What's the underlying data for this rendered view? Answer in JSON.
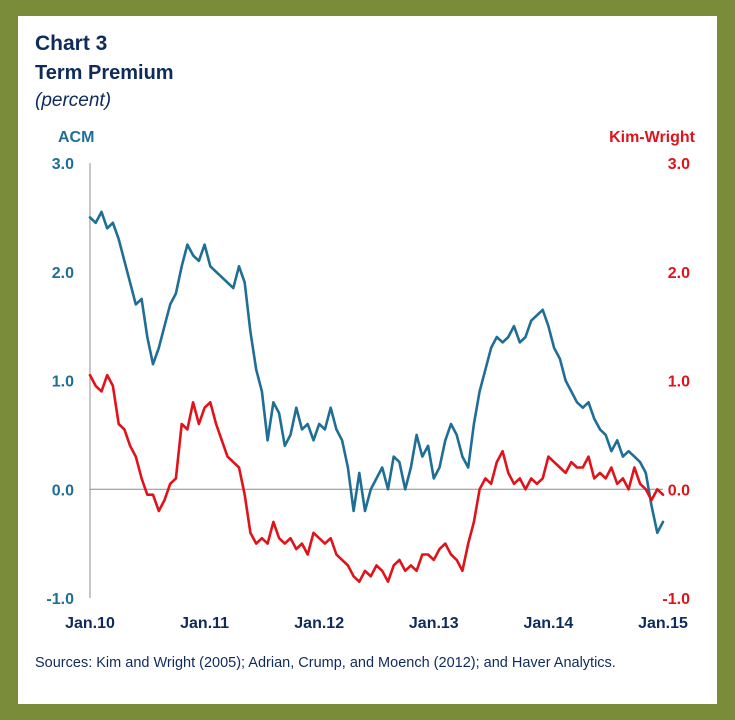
{
  "title": "Chart 3",
  "subtitle": "Term Premium",
  "units": "(percent)",
  "source": "Sources: Kim and Wright (2005); Adrian, Crump, and Moench (2012); and Haver Analytics.",
  "colors": {
    "acm": "#1f6e96",
    "kim_wright": "#e0131a",
    "navy": "#0e2b5c",
    "border": "#7a8c3a"
  },
  "chart_data": {
    "type": "line",
    "title": "Term Premium",
    "ylabel_left": "ACM",
    "ylabel_right": "Kim-Wright",
    "ylim": [
      -1.0,
      3.0
    ],
    "xlim": [
      2010.0,
      2015.0
    ],
    "x_ticks": [
      2010,
      2011,
      2012,
      2013,
      2014,
      2015
    ],
    "x_tick_labels": [
      "Jan.10",
      "Jan.11",
      "Jan.12",
      "Jan.13",
      "Jan.14",
      "Jan.15"
    ],
    "y_tick_values": [
      3.0,
      2.0,
      1.0,
      0.0,
      -1.0
    ],
    "y_tick_labels": [
      "3.0",
      "2.0",
      "1.0",
      "0.0",
      "-1.0"
    ],
    "series": [
      {
        "name": "ACM",
        "x": [
          2010.0,
          2010.05,
          2010.1,
          2010.15,
          2010.2,
          2010.25,
          2010.3,
          2010.35,
          2010.4,
          2010.45,
          2010.5,
          2010.55,
          2010.6,
          2010.65,
          2010.7,
          2010.75,
          2010.8,
          2010.85,
          2010.9,
          2010.95,
          2011.0,
          2011.05,
          2011.1,
          2011.15,
          2011.2,
          2011.25,
          2011.3,
          2011.35,
          2011.4,
          2011.45,
          2011.5,
          2011.55,
          2011.6,
          2011.65,
          2011.7,
          2011.75,
          2011.8,
          2011.85,
          2011.9,
          2011.95,
          2012.0,
          2012.05,
          2012.1,
          2012.15,
          2012.2,
          2012.25,
          2012.3,
          2012.35,
          2012.4,
          2012.45,
          2012.5,
          2012.55,
          2012.6,
          2012.65,
          2012.7,
          2012.75,
          2012.8,
          2012.85,
          2012.9,
          2012.95,
          2013.0,
          2013.05,
          2013.1,
          2013.15,
          2013.2,
          2013.25,
          2013.3,
          2013.35,
          2013.4,
          2013.45,
          2013.5,
          2013.55,
          2013.6,
          2013.65,
          2013.7,
          2013.75,
          2013.8,
          2013.85,
          2013.9,
          2013.95,
          2014.0,
          2014.05,
          2014.1,
          2014.15,
          2014.2,
          2014.25,
          2014.3,
          2014.35,
          2014.4,
          2014.45,
          2014.5,
          2014.55,
          2014.6,
          2014.65,
          2014.7,
          2014.75,
          2014.8,
          2014.85,
          2014.9,
          2014.95,
          2015.0
        ],
        "values": [
          2.5,
          2.45,
          2.55,
          2.4,
          2.45,
          2.3,
          2.1,
          1.9,
          1.7,
          1.75,
          1.4,
          1.15,
          1.3,
          1.5,
          1.7,
          1.8,
          2.05,
          2.25,
          2.15,
          2.1,
          2.25,
          2.05,
          2.0,
          1.95,
          1.9,
          1.85,
          2.05,
          1.9,
          1.45,
          1.1,
          0.9,
          0.45,
          0.8,
          0.7,
          0.4,
          0.5,
          0.75,
          0.55,
          0.6,
          0.45,
          0.6,
          0.55,
          0.75,
          0.55,
          0.45,
          0.2,
          -0.2,
          0.15,
          -0.2,
          0.0,
          0.1,
          0.2,
          0.0,
          0.3,
          0.25,
          0.0,
          0.2,
          0.5,
          0.3,
          0.4,
          0.1,
          0.2,
          0.45,
          0.6,
          0.5,
          0.3,
          0.2,
          0.6,
          0.9,
          1.1,
          1.3,
          1.4,
          1.35,
          1.4,
          1.5,
          1.35,
          1.4,
          1.55,
          1.6,
          1.65,
          1.5,
          1.3,
          1.2,
          1.0,
          0.9,
          0.8,
          0.75,
          0.8,
          0.65,
          0.55,
          0.5,
          0.35,
          0.45,
          0.3,
          0.35,
          0.3,
          0.25,
          0.15,
          -0.15,
          -0.4,
          -0.3
        ]
      },
      {
        "name": "Kim-Wright",
        "x": [
          2010.0,
          2010.05,
          2010.1,
          2010.15,
          2010.2,
          2010.25,
          2010.3,
          2010.35,
          2010.4,
          2010.45,
          2010.5,
          2010.55,
          2010.6,
          2010.65,
          2010.7,
          2010.75,
          2010.8,
          2010.85,
          2010.9,
          2010.95,
          2011.0,
          2011.05,
          2011.1,
          2011.15,
          2011.2,
          2011.25,
          2011.3,
          2011.35,
          2011.4,
          2011.45,
          2011.5,
          2011.55,
          2011.6,
          2011.65,
          2011.7,
          2011.75,
          2011.8,
          2011.85,
          2011.9,
          2011.95,
          2012.0,
          2012.05,
          2012.1,
          2012.15,
          2012.2,
          2012.25,
          2012.3,
          2012.35,
          2012.4,
          2012.45,
          2012.5,
          2012.55,
          2012.6,
          2012.65,
          2012.7,
          2012.75,
          2012.8,
          2012.85,
          2012.9,
          2012.95,
          2013.0,
          2013.05,
          2013.1,
          2013.15,
          2013.2,
          2013.25,
          2013.3,
          2013.35,
          2013.4,
          2013.45,
          2013.5,
          2013.55,
          2013.6,
          2013.65,
          2013.7,
          2013.75,
          2013.8,
          2013.85,
          2013.9,
          2013.95,
          2014.0,
          2014.05,
          2014.1,
          2014.15,
          2014.2,
          2014.25,
          2014.3,
          2014.35,
          2014.4,
          2014.45,
          2014.5,
          2014.55,
          2014.6,
          2014.65,
          2014.7,
          2014.75,
          2014.8,
          2014.85,
          2014.9,
          2014.95,
          2015.0
        ],
        "values": [
          1.05,
          0.95,
          0.9,
          1.05,
          0.95,
          0.6,
          0.55,
          0.4,
          0.3,
          0.1,
          -0.05,
          -0.05,
          -0.2,
          -0.1,
          0.05,
          0.1,
          0.6,
          0.55,
          0.8,
          0.6,
          0.75,
          0.8,
          0.6,
          0.45,
          0.3,
          0.25,
          0.2,
          -0.05,
          -0.4,
          -0.5,
          -0.45,
          -0.5,
          -0.3,
          -0.45,
          -0.5,
          -0.45,
          -0.55,
          -0.5,
          -0.6,
          -0.4,
          -0.45,
          -0.5,
          -0.45,
          -0.6,
          -0.65,
          -0.7,
          -0.8,
          -0.85,
          -0.75,
          -0.8,
          -0.7,
          -0.75,
          -0.85,
          -0.7,
          -0.65,
          -0.75,
          -0.7,
          -0.75,
          -0.6,
          -0.6,
          -0.65,
          -0.55,
          -0.5,
          -0.6,
          -0.65,
          -0.75,
          -0.5,
          -0.3,
          0.0,
          0.1,
          0.05,
          0.25,
          0.35,
          0.15,
          0.05,
          0.1,
          0.0,
          0.1,
          0.05,
          0.1,
          0.3,
          0.25,
          0.2,
          0.15,
          0.25,
          0.2,
          0.2,
          0.3,
          0.1,
          0.15,
          0.1,
          0.2,
          0.05,
          0.1,
          0.0,
          0.2,
          0.05,
          0.0,
          -0.1,
          0.0,
          -0.05
        ]
      }
    ]
  }
}
